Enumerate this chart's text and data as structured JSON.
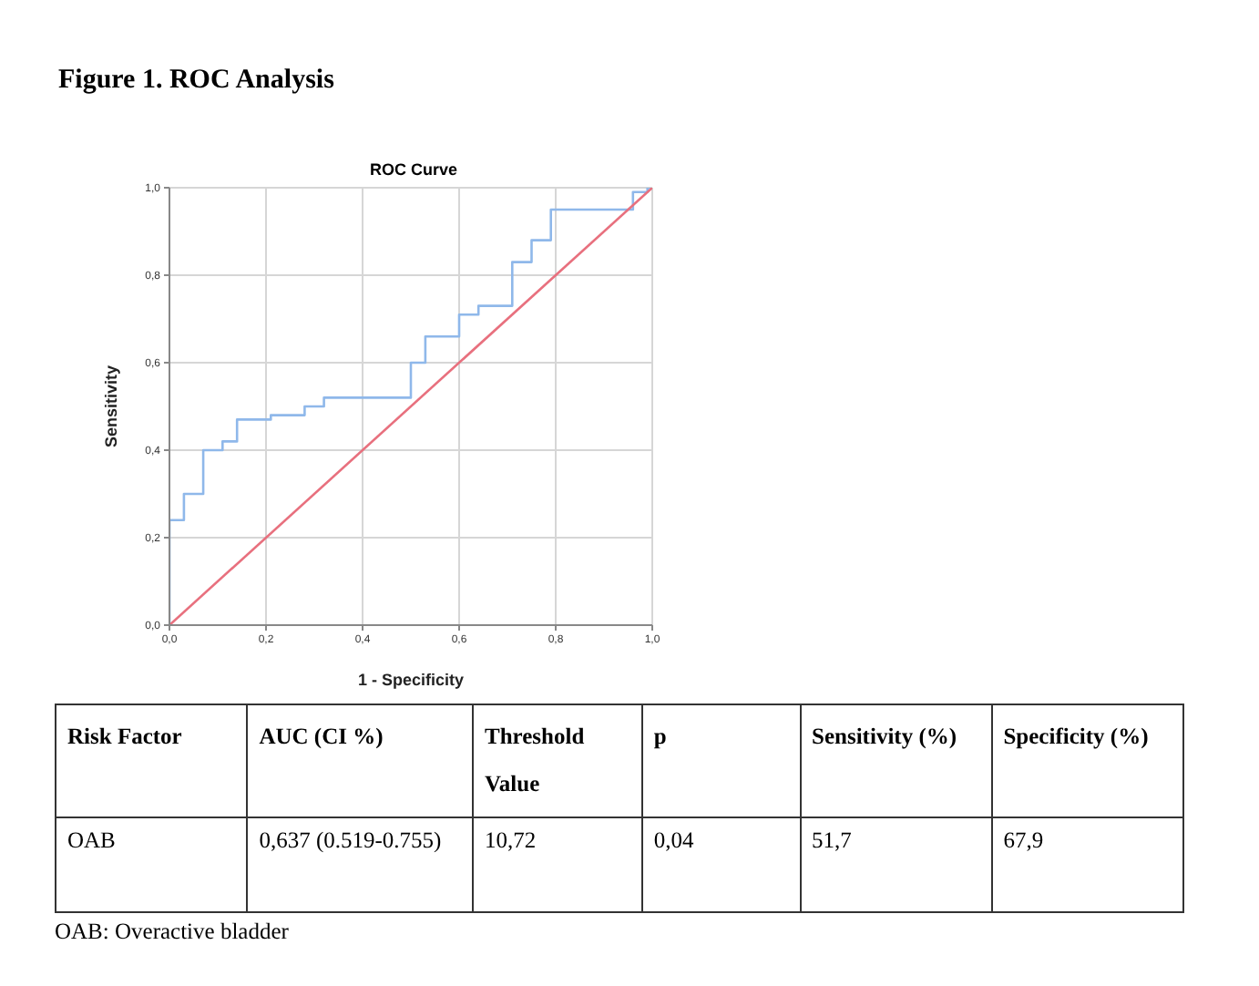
{
  "chart_data": [
    {
      "type": "step",
      "title": "Figure 1. ROC Analysis",
      "subtitle": "ROC Curve",
      "xlabel": "1 - Specificity",
      "ylabel": "Sensitivity",
      "series": [
        {
          "type": "step",
          "color": "#8fb8ea",
          "x": [
            0,
            0,
            0.03,
            0.07,
            0.11,
            0.14,
            0.21,
            0.28,
            0.32,
            0.5,
            0.53,
            0.6,
            0.64,
            0.71,
            0.75,
            0.79,
            0.96,
            0.99,
            1
          ],
          "values": [
            0,
            0.24,
            0.3,
            0.4,
            0.42,
            0.47,
            0.48,
            0.5,
            0.52,
            0.6,
            0.66,
            0.71,
            0.73,
            0.83,
            0.88,
            0.95,
            0.99,
            1,
            1
          ]
        },
        {
          "type": "line",
          "color": "#e8707e",
          "x": [
            0,
            1
          ],
          "values": [
            0,
            1
          ]
        }
      ],
      "xlim": [
        0,
        1
      ],
      "ylim": [
        0,
        1
      ],
      "xticks": [
        {
          "value": 0,
          "label": "0,0"
        },
        {
          "value": 0.2,
          "label": "0,2"
        },
        {
          "value": 0.4,
          "label": "0,4"
        },
        {
          "value": 0.6,
          "label": "0,6"
        },
        {
          "value": 0.8,
          "label": "0,8"
        },
        {
          "value": 1,
          "label": "1,0"
        }
      ],
      "yticks": [
        {
          "value": 0,
          "label": "0,0"
        },
        {
          "value": 0.2,
          "label": "0,2"
        },
        {
          "value": 0.4,
          "label": "0,4"
        },
        {
          "value": 0.6,
          "label": "0,6"
        },
        {
          "value": 0.8,
          "label": "0,8"
        },
        {
          "value": 1,
          "label": "1,0"
        }
      ],
      "grid": true
    },
    {
      "type": "other",
      "annotations": [
        "Risk Factor",
        "AUC (CI %)",
        "Threshold Value",
        "p",
        "Sensitivity (%)",
        "Specificity (%)",
        "OAB",
        "0,637 (0.519-0.755)",
        "10,72",
        "0,04",
        "51,7",
        "67,9",
        "OAB: Overactive bladder"
      ]
    }
  ]
}
